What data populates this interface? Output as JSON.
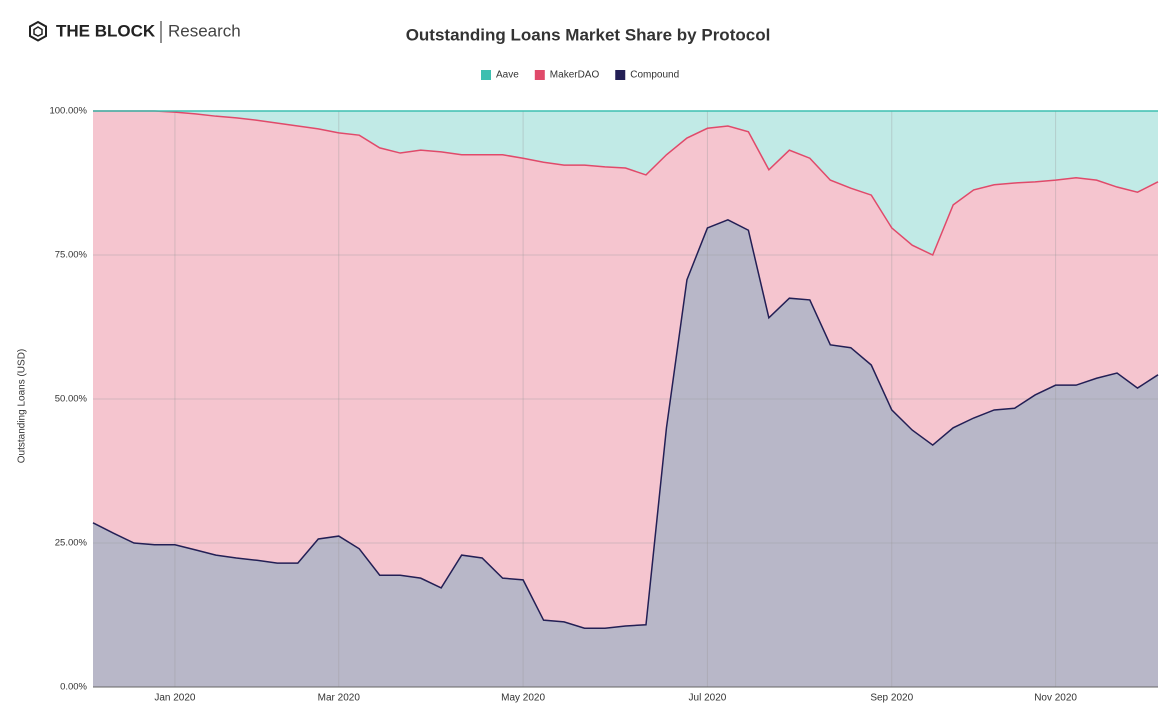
{
  "brand": "THE BLOCK",
  "brand_sub": "Research",
  "chart_data": {
    "type": "stacked-area",
    "title": "Outstanding Loans Market Share by Protocol",
    "y_label": "Outstanding Loans (USD)",
    "categories": [
      null,
      null,
      null,
      null,
      "Jan 2020",
      null,
      null,
      null,
      null,
      null,
      null,
      null,
      "Mar 2020",
      null,
      null,
      null,
      null,
      null,
      null,
      null,
      null,
      "May 2020",
      null,
      null,
      null,
      null,
      null,
      null,
      null,
      null,
      "Jul 2020",
      null,
      null,
      null,
      null,
      null,
      null,
      null,
      null,
      "Sep 2020",
      null,
      null,
      null,
      null,
      null,
      null,
      null,
      "Nov 2020",
      null,
      null,
      null,
      null,
      null
    ],
    "series": [
      {
        "name": "Aave",
        "color": "#3dbfb0",
        "values": [
          0,
          0,
          0,
          0,
          0.2,
          0.5,
          0.9,
          1.2,
          1.6,
          2.1,
          2.6,
          3.1,
          3.8,
          4.2,
          6.4,
          7.3,
          6.8,
          7.1,
          7.6,
          7.6,
          7.6,
          8.2,
          8.9,
          9.4,
          9.4,
          9.7,
          9.9,
          11.1,
          7.6,
          4.7,
          3,
          2.6,
          3.6,
          10.2,
          6.8,
          8.2,
          12,
          13.4,
          14.6,
          20.3,
          23.3,
          25,
          16.3,
          13.7,
          12.8,
          12.5,
          12.3,
          12,
          11.6,
          12,
          13.2,
          14.1,
          12.3
        ]
      },
      {
        "name": "MakerDAO",
        "color": "#e04a6a",
        "values": [
          71.5,
          73.3,
          75,
          75.3,
          75.1,
          75.7,
          76.2,
          76.4,
          76.4,
          76.4,
          75.9,
          71.2,
          70,
          71.8,
          74.2,
          73.3,
          74.3,
          75.7,
          69.5,
          70,
          73.5,
          73.2,
          79.5,
          79.3,
          80.4,
          80.1,
          79.5,
          78.1,
          47.4,
          24.6,
          17.3,
          16.3,
          17.1,
          25.7,
          25.7,
          24.6,
          28.6,
          27.7,
          29.5,
          31.6,
          32.1,
          33,
          38.7,
          39.6,
          39.1,
          39.1,
          37,
          35.6,
          36,
          34.4,
          32.3,
          34,
          33.5
        ]
      },
      {
        "name": "Compound",
        "color": "#231f55",
        "values": [
          28.5,
          26.7,
          25,
          24.7,
          24.7,
          23.8,
          22.9,
          22.4,
          22,
          21.5,
          21.5,
          25.7,
          26.2,
          24,
          19.4,
          19.4,
          18.9,
          17.2,
          22.9,
          22.4,
          18.9,
          18.6,
          11.6,
          11.3,
          10.2,
          10.2,
          10.6,
          10.8,
          45,
          70.7,
          79.7,
          81.1,
          79.3,
          64.1,
          67.5,
          67.2,
          59.4,
          58.9,
          55.9,
          48.1,
          44.6,
          42,
          45,
          46.7,
          48.1,
          48.4,
          50.7,
          52.4,
          52.4,
          53.6,
          54.5,
          51.9,
          54.2
        ]
      }
    ],
    "ylim": [
      0,
      100
    ],
    "yticks": [
      {
        "value": 0,
        "label": "0.00%"
      },
      {
        "value": 25,
        "label": "25.00%"
      },
      {
        "value": 50,
        "label": "50.00%"
      },
      {
        "value": 75,
        "label": "75.00%"
      },
      {
        "value": 100,
        "label": "100.00%"
      }
    ],
    "grid": true,
    "legend": "top"
  }
}
